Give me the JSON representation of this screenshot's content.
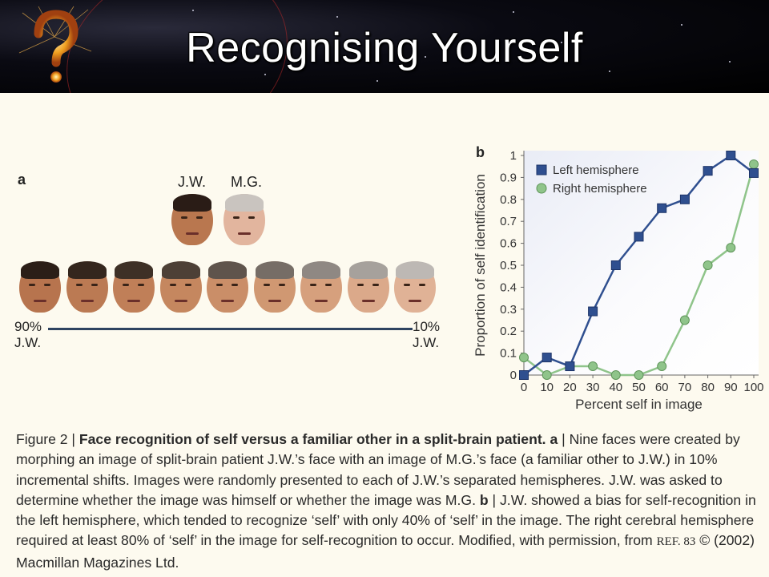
{
  "slide": {
    "title": "Recognising Yourself",
    "icon": "question-mark-sparkler-icon"
  },
  "panel_a": {
    "label": "a",
    "top_faces": [
      {
        "label": "J.W.",
        "skin": "#b9774f",
        "hair": "#2a1c16"
      },
      {
        "label": "M.G.",
        "skin": "#e2b59e",
        "hair": "#c9c4bf"
      }
    ],
    "morph_faces": [
      {
        "skin": "#b7744e",
        "hair": "#2b1e17"
      },
      {
        "skin": "#bb7a53",
        "hair": "#34261d"
      },
      {
        "skin": "#c07f58",
        "hair": "#3e3026"
      },
      {
        "skin": "#c5875f",
        "hair": "#4d4036"
      },
      {
        "skin": "#ca8e68",
        "hair": "#5f544c"
      },
      {
        "skin": "#d09872",
        "hair": "#766d66"
      },
      {
        "skin": "#d6a07d",
        "hair": "#8f8883"
      },
      {
        "skin": "#dba98a",
        "hair": "#a6a19c"
      },
      {
        "skin": "#e0b296",
        "hair": "#bdb8b4"
      }
    ],
    "left_end": {
      "pct": "90%",
      "name": "J.W."
    },
    "right_end": {
      "pct": "10%",
      "name": "J.W."
    }
  },
  "panel_b": {
    "label": "b"
  },
  "chart_data": {
    "type": "line",
    "xlabel": "Percent self in image",
    "ylabel": "Proportion of self identification",
    "x": [
      0,
      10,
      20,
      30,
      40,
      50,
      60,
      70,
      80,
      90,
      100
    ],
    "x_tick_labels": [
      "0",
      "10",
      "20",
      "30",
      "40",
      "50",
      "60",
      "70",
      "80",
      "90",
      "100"
    ],
    "y_ticks": [
      0,
      0.1,
      0.2,
      0.3,
      0.4,
      0.5,
      0.6,
      0.7,
      0.8,
      0.9,
      1
    ],
    "y_tick_labels": [
      "0",
      "0.1",
      "0.2",
      "0.3",
      "0.4",
      "0.5",
      "0.6",
      "0.7",
      "0.8",
      "0.9",
      "1"
    ],
    "xlim": [
      0,
      100
    ],
    "ylim": [
      0,
      1
    ],
    "legend_position": "top-left",
    "series": [
      {
        "name": "Left hemisphere",
        "marker": "square",
        "color": "#2f4f8f",
        "line_color": "#2f4f8f",
        "values": [
          0.0,
          0.08,
          0.04,
          0.29,
          0.5,
          0.63,
          0.76,
          0.8,
          0.93,
          1.0,
          0.92
        ]
      },
      {
        "name": "Right hemisphere",
        "marker": "circle",
        "color": "#8fc48a",
        "line_color": "#8fc48a",
        "values": [
          0.08,
          0.0,
          0.04,
          0.04,
          0.0,
          0.0,
          0.04,
          0.25,
          0.5,
          0.58,
          0.96
        ]
      }
    ]
  },
  "caption": {
    "fig": "Figure 2 | ",
    "bold_title": "Face recognition of self versus a familiar other in a split-brain patient. a",
    "part1": " | Nine faces were created by morphing an image of split-brain patient J.W.’s face with an image of M.G.’s face (a familiar other to J.W.) in 10% incremental shifts. Images were randomly presented to each of J.W.’s separated hemispheres. J.W. was asked to determine whether the image was himself or whether the image was M.G. ",
    "bold_b": "b",
    "part2": " | J.W. showed a bias for self-recognition in the left hemisphere, which tended to recognize ‘self’ with only 40% of ‘self’ in the image. The right cerebral hemisphere required at least 80% of ‘self’ in the image for self-recognition to occur. Modified, with permission, from ",
    "ref": "REF. 83",
    "part3": " © (2002) Macmillan Magazines Ltd."
  }
}
